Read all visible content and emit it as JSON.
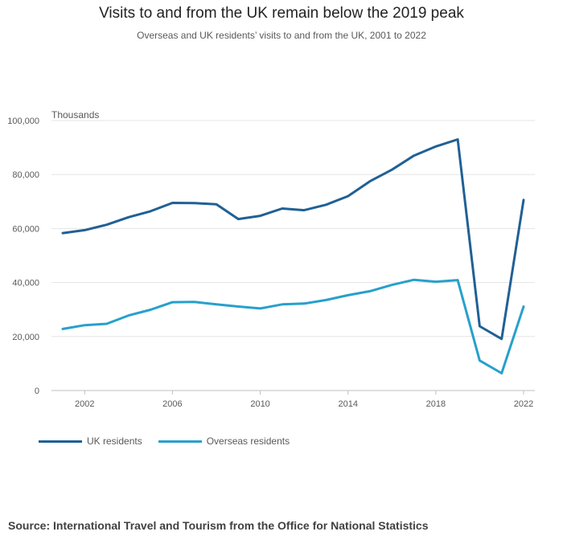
{
  "chart_data": {
    "type": "line",
    "title": "Visits to and from the UK remain below the 2019 peak",
    "subtitle": "Overseas and UK residents’ visits to and from the UK, 2001 to 2022",
    "ylabel": "Thousands",
    "xlabel": "",
    "ylim": [
      0,
      100000
    ],
    "xlim": [
      2001,
      2022
    ],
    "y_ticks": [
      {
        "value": 0,
        "label": "0"
      },
      {
        "value": 20000,
        "label": "20,000"
      },
      {
        "value": 40000,
        "label": "40,000"
      },
      {
        "value": 60000,
        "label": "60,000"
      },
      {
        "value": 80000,
        "label": "80,000"
      },
      {
        "value": 100000,
        "label": "100,000"
      }
    ],
    "x_ticks": [
      {
        "value": 2002,
        "label": "2002"
      },
      {
        "value": 2006,
        "label": "2006"
      },
      {
        "value": 2010,
        "label": "2010"
      },
      {
        "value": 2014,
        "label": "2014"
      },
      {
        "value": 2018,
        "label": "2018"
      },
      {
        "value": 2022,
        "label": "2022"
      }
    ],
    "x": [
      2001,
      2002,
      2003,
      2004,
      2005,
      2006,
      2007,
      2008,
      2009,
      2010,
      2011,
      2012,
      2013,
      2014,
      2015,
      2016,
      2017,
      2018,
      2019,
      2020,
      2021,
      2022
    ],
    "series": [
      {
        "name": "UK residents",
        "color": "#206095",
        "values": [
          58300,
          59400,
          61400,
          64200,
          66400,
          69500,
          69400,
          69000,
          63500,
          64700,
          67400,
          66800,
          68800,
          72000,
          77500,
          81800,
          87000,
          90400,
          93000,
          23800,
          19100,
          70600
        ]
      },
      {
        "name": "Overseas residents",
        "color": "#27a0cc",
        "values": [
          22800,
          24200,
          24700,
          27800,
          29900,
          32700,
          32800,
          31900,
          31100,
          30400,
          31900,
          32200,
          33500,
          35300,
          36800,
          39100,
          41000,
          40300,
          40900,
          11100,
          6400,
          31100
        ]
      }
    ],
    "legend": [
      {
        "label": "UK residents",
        "color": "#206095"
      },
      {
        "label": "Overseas residents",
        "color": "#27a0cc"
      }
    ],
    "legend_position": "bottom-left",
    "grid": true
  },
  "source": "Source: International Travel and Tourism from the Office for National Statistics"
}
